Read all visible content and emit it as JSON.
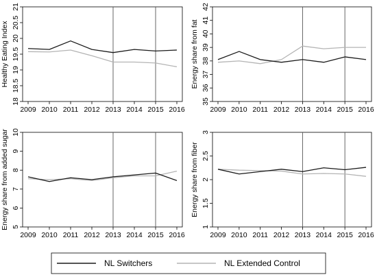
{
  "chart_data": [
    {
      "type": "line",
      "ylabel": "Healthy Eating Index",
      "x": [
        2009,
        2010,
        2011,
        2012,
        2013,
        2014,
        2015,
        2016
      ],
      "xticks": [
        "2009",
        "2010",
        "2011",
        "2012",
        "2013",
        "2014",
        "2015",
        "2016"
      ],
      "ylim": [
        18,
        21
      ],
      "yticks": [
        "18",
        "18.5",
        "19",
        "19.5",
        "20",
        "20.5",
        "21"
      ],
      "reference_lines_x": [
        2013,
        2015
      ],
      "grid": false,
      "series": [
        {
          "name": "NL Switchers",
          "values": [
            19.68,
            19.65,
            19.92,
            19.65,
            19.55,
            19.65,
            19.6,
            19.63
          ]
        },
        {
          "name": "NL Extended Control",
          "values": [
            19.58,
            19.57,
            19.63,
            19.45,
            19.25,
            19.25,
            19.22,
            19.1
          ]
        }
      ]
    },
    {
      "type": "line",
      "ylabel": "Energy share from fat",
      "x": [
        2009,
        2010,
        2011,
        2012,
        2013,
        2014,
        2015,
        2016
      ],
      "xticks": [
        "2009",
        "2010",
        "2011",
        "2012",
        "2013",
        "2014",
        "2015",
        "2016"
      ],
      "ylim": [
        35,
        42
      ],
      "yticks": [
        "35",
        "36",
        "37",
        "38",
        "39",
        "40",
        "41",
        "42"
      ],
      "reference_lines_x": [
        2013,
        2015
      ],
      "grid": false,
      "series": [
        {
          "name": "NL Switchers",
          "values": [
            38.1,
            38.7,
            38.1,
            37.9,
            38.1,
            37.9,
            38.3,
            38.1
          ]
        },
        {
          "name": "NL Extended Control",
          "values": [
            37.9,
            38.0,
            37.8,
            38.1,
            39.1,
            38.9,
            39.0,
            39.0
          ]
        }
      ]
    },
    {
      "type": "line",
      "ylabel": "Energy share from added sugar",
      "x": [
        2009,
        2010,
        2011,
        2012,
        2013,
        2014,
        2015,
        2016
      ],
      "xticks": [
        "2009",
        "2010",
        "2011",
        "2012",
        "2013",
        "2014",
        "2015",
        "2016"
      ],
      "ylim": [
        5,
        10
      ],
      "yticks": [
        "5",
        "6",
        "7",
        "8",
        "9",
        "10"
      ],
      "reference_lines_x": [
        2013,
        2015
      ],
      "grid": false,
      "series": [
        {
          "name": "NL Switchers",
          "values": [
            7.65,
            7.4,
            7.6,
            7.5,
            7.65,
            7.75,
            7.85,
            7.45
          ]
        },
        {
          "name": "NL Extended Control",
          "values": [
            7.55,
            7.5,
            7.55,
            7.45,
            7.6,
            7.7,
            7.7,
            7.95
          ]
        }
      ]
    },
    {
      "type": "line",
      "ylabel": "Energy share from fiber",
      "x": [
        2009,
        2010,
        2011,
        2012,
        2013,
        2014,
        2015,
        2016
      ],
      "xticks": [
        "2009",
        "2010",
        "2011",
        "2012",
        "2013",
        "2014",
        "2015",
        "2016"
      ],
      "ylim": [
        1,
        3
      ],
      "yticks": [
        "1",
        "1.5",
        "2",
        "2.5",
        "3"
      ],
      "reference_lines_x": [
        2013,
        2015
      ],
      "grid": false,
      "series": [
        {
          "name": "NL Switchers",
          "values": [
            2.22,
            2.12,
            2.17,
            2.22,
            2.17,
            2.25,
            2.21,
            2.26
          ]
        },
        {
          "name": "NL Extended Control",
          "values": [
            2.22,
            2.2,
            2.19,
            2.18,
            2.12,
            2.13,
            2.12,
            2.07
          ]
        }
      ]
    }
  ],
  "legend": {
    "placement": "bottom-center",
    "items": [
      {
        "label": "NL Switchers",
        "color": "#1a1a1a"
      },
      {
        "label": "NL Extended Control",
        "color": "#b4b4b4"
      }
    ]
  },
  "colors": {
    "series_dark": "#1a1a1a",
    "series_light": "#b4b4b4",
    "axis": "#000000",
    "reference_line": "#555555"
  }
}
